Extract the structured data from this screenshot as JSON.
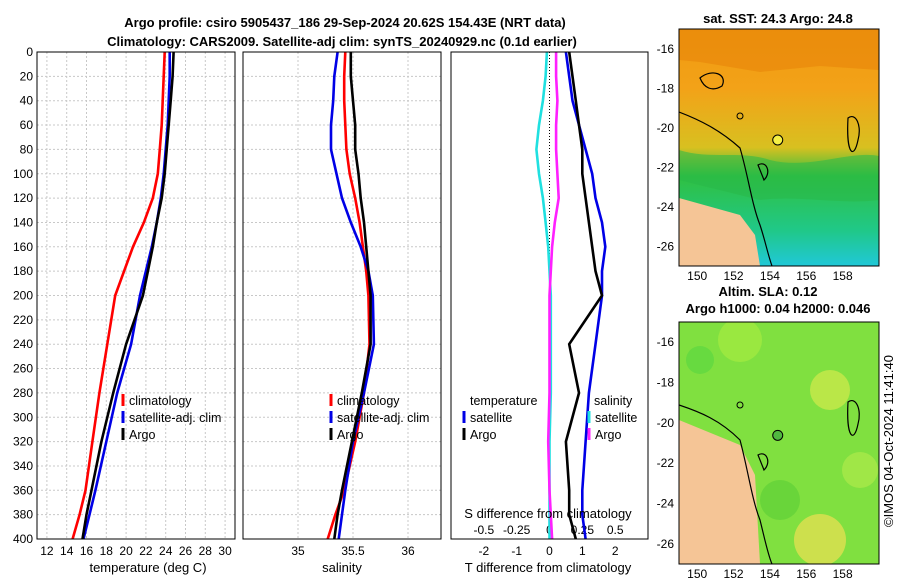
{
  "header": {
    "title_line1": "Argo profile: csiro 5905437_186 29-Sep-2024 20.62S 154.43E (NRT data)",
    "title_line2": "Climatology: CARS2009. Satellite-adj clim: synTS_20240929.nc (0.1d earlier)"
  },
  "watermark": "©IMOS 04-Oct-2024 11:41:40",
  "colors": {
    "red": "#ff0000",
    "blue": "#0000e6",
    "black": "#000000",
    "cyan": "#20e0e0",
    "magenta": "#ff20ff"
  },
  "chart_data": [
    {
      "id": "temperature",
      "type": "line",
      "xlabel": "temperature (deg C)",
      "ylabel": "depth",
      "xlim": [
        11,
        31
      ],
      "ylim": [
        0,
        400
      ],
      "xticks": [
        "12",
        "14",
        "16",
        "18",
        "20",
        "22",
        "24",
        "26",
        "28",
        "30"
      ],
      "yticks": [
        "0",
        "20",
        "40",
        "60",
        "80",
        "100",
        "120",
        "140",
        "160",
        "180",
        "200",
        "220",
        "240",
        "260",
        "280",
        "300",
        "320",
        "340",
        "360",
        "380",
        "400"
      ],
      "grid": true,
      "legend": [
        "climatology",
        "satellite-adj. clim",
        "Argo"
      ],
      "legend_colors": [
        "#ff0000",
        "#0000e6",
        "#000000"
      ],
      "series": [
        {
          "name": "climatology",
          "color": "#ff0000",
          "x": [
            23.9,
            23.8,
            23.7,
            23.6,
            23.4,
            23.2,
            22.7,
            21.8,
            20.7,
            19.8,
            18.9,
            18.1,
            17.3,
            16.6,
            15.9,
            15.3,
            14.6
          ],
          "depth": [
            0,
            20,
            40,
            60,
            80,
            100,
            120,
            140,
            160,
            180,
            200,
            240,
            280,
            320,
            360,
            380,
            400
          ]
        },
        {
          "name": "satellite-adj. clim",
          "color": "#0000e6",
          "x": [
            24.4,
            24.4,
            24.3,
            24.2,
            24.0,
            23.8,
            23.5,
            23.1,
            22.6,
            22.0,
            21.4,
            20.5,
            19.1,
            18.0,
            16.9,
            16.3,
            15.7
          ],
          "depth": [
            0,
            20,
            40,
            60,
            80,
            100,
            120,
            140,
            160,
            180,
            200,
            240,
            280,
            320,
            360,
            380,
            400
          ]
        },
        {
          "name": "Argo",
          "color": "#000000",
          "x": [
            24.8,
            24.7,
            24.5,
            24.3,
            24.1,
            23.9,
            23.6,
            23.1,
            22.7,
            22.2,
            21.7,
            20.0,
            18.7,
            17.5,
            16.5,
            16.0,
            15.6
          ],
          "depth": [
            0,
            20,
            40,
            60,
            80,
            100,
            120,
            140,
            160,
            180,
            200,
            240,
            280,
            320,
            360,
            380,
            400
          ]
        }
      ]
    },
    {
      "id": "salinity",
      "type": "line",
      "xlabel": "salinity",
      "xlim": [
        34.5,
        36.3
      ],
      "ylim": [
        0,
        400
      ],
      "xticks": [
        "35",
        "35.5",
        "36"
      ],
      "xtick_values": [
        35,
        35.5,
        36
      ],
      "grid": true,
      "legend": [
        "climatology",
        "satellite-adj. clim",
        "Argo"
      ],
      "legend_colors": [
        "#ff0000",
        "#0000e6",
        "#000000"
      ],
      "series": [
        {
          "name": "climatology",
          "color": "#ff0000",
          "x": [
            35.43,
            35.42,
            35.42,
            35.43,
            35.44,
            35.47,
            35.52,
            35.56,
            35.59,
            35.62,
            35.64,
            35.65,
            35.6,
            35.52,
            35.42,
            35.34,
            35.27
          ],
          "depth": [
            0,
            20,
            40,
            60,
            80,
            100,
            120,
            140,
            160,
            180,
            200,
            240,
            280,
            320,
            360,
            380,
            400
          ]
        },
        {
          "name": "satellite-adj. clim",
          "color": "#0000e6",
          "x": [
            35.36,
            35.33,
            35.32,
            35.3,
            35.3,
            35.35,
            35.4,
            35.48,
            35.57,
            35.64,
            35.68,
            35.69,
            35.6,
            35.5,
            35.43,
            35.4,
            35.37
          ],
          "depth": [
            0,
            20,
            40,
            60,
            80,
            100,
            120,
            140,
            160,
            180,
            200,
            240,
            280,
            320,
            360,
            380,
            400
          ]
        },
        {
          "name": "Argo",
          "color": "#000000",
          "x": [
            35.48,
            35.48,
            35.5,
            35.52,
            35.52,
            35.55,
            35.57,
            35.6,
            35.62,
            35.64,
            35.66,
            35.66,
            35.58,
            35.49,
            35.4,
            35.36,
            35.33
          ],
          "depth": [
            0,
            20,
            40,
            60,
            80,
            100,
            120,
            140,
            160,
            180,
            200,
            240,
            280,
            320,
            360,
            380,
            400
          ]
        }
      ]
    },
    {
      "id": "difference",
      "type": "line",
      "xlabel": "T difference from climatology",
      "xlabel_top": "S difference from climatology",
      "xlim": [
        -3,
        3
      ],
      "ylim": [
        0,
        400
      ],
      "xticks": [
        "-2",
        "-1",
        "0",
        "1",
        "2"
      ],
      "xtick_values": [
        -2,
        -1,
        0,
        1,
        2
      ],
      "s_xticks": [
        "-0.5",
        "-0.25",
        "0",
        "0.25",
        "0.5"
      ],
      "s_xtick_values": [
        -0.5,
        -0.25,
        0,
        0.25,
        0.5
      ],
      "s_xlim": [
        -0.75,
        0.75
      ],
      "zero_line": true,
      "legend_left_title": "temperature",
      "legend_left": [
        "satellite",
        "Argo"
      ],
      "legend_left_colors": [
        "#0000e6",
        "#000000"
      ],
      "legend_right_title": "salinity",
      "legend_right": [
        "satellite",
        "Argo"
      ],
      "legend_right_colors": [
        "#20e0e0",
        "#ff20ff"
      ],
      "series": [
        {
          "name": "T satellite",
          "color": "#0000e6",
          "x": [
            0.5,
            0.6,
            0.7,
            0.9,
            1.1,
            1.3,
            1.4,
            1.6,
            1.7,
            1.6,
            1.6,
            1.4,
            1.2,
            1.1,
            1.0,
            1.0,
            1.1
          ],
          "depth": [
            0,
            20,
            40,
            60,
            80,
            100,
            120,
            140,
            160,
            180,
            200,
            240,
            280,
            320,
            360,
            380,
            400
          ]
        },
        {
          "name": "T Argo",
          "color": "#000000",
          "x": [
            0.6,
            0.7,
            0.8,
            0.9,
            1.0,
            1.0,
            1.1,
            1.2,
            1.3,
            1.4,
            1.6,
            0.6,
            0.9,
            0.5,
            0.6,
            0.6,
            0.8
          ],
          "depth": [
            0,
            20,
            40,
            60,
            80,
            100,
            120,
            140,
            160,
            180,
            200,
            240,
            280,
            320,
            360,
            380,
            400
          ]
        },
        {
          "name": "S satellite",
          "color": "#20e0e0",
          "x": [
            -0.02,
            -0.03,
            -0.05,
            -0.08,
            -0.1,
            -0.08,
            -0.05,
            -0.03,
            -0.01,
            0.0,
            0.01,
            0.01,
            0.01,
            0.0,
            0.0,
            0.0,
            0.0
          ],
          "depth": [
            0,
            20,
            40,
            60,
            80,
            100,
            120,
            140,
            160,
            180,
            200,
            240,
            280,
            320,
            360,
            380,
            400
          ]
        },
        {
          "name": "S Argo",
          "color": "#ff20ff",
          "x": [
            0.05,
            0.05,
            0.06,
            0.05,
            0.05,
            0.06,
            0.07,
            0.04,
            0.02,
            0.01,
            0.0,
            0.0,
            0.0,
            -0.01,
            0.0,
            0.01,
            0.02
          ],
          "depth": [
            0,
            20,
            40,
            60,
            80,
            100,
            120,
            140,
            160,
            180,
            200,
            240,
            280,
            320,
            360,
            380,
            400
          ]
        }
      ]
    },
    {
      "id": "sst_map",
      "type": "heatmap",
      "title": "sat. SST: 24.3 Argo: 24.8",
      "xticks": [
        "150",
        "152",
        "154",
        "156",
        "158"
      ],
      "xtick_values": [
        150,
        152,
        154,
        156,
        158
      ],
      "yticks": [
        "-16",
        "-18",
        "-20",
        "-22",
        "-24",
        "-26"
      ],
      "ytick_values": [
        -16,
        -18,
        -20,
        -22,
        -24,
        -26
      ],
      "xlim": [
        149,
        160
      ],
      "ylim": [
        -27,
        -15
      ],
      "argo_lon": 154.43,
      "argo_lat": -20.62
    },
    {
      "id": "sla_map",
      "type": "heatmap",
      "title_line1": "Altim. SLA: 0.12",
      "title_line2": "Argo h1000: 0.04 h2000: 0.046",
      "xticks": [
        "150",
        "152",
        "154",
        "156",
        "158"
      ],
      "xtick_values": [
        150,
        152,
        154,
        156,
        158
      ],
      "yticks": [
        "-16",
        "-18",
        "-20",
        "-22",
        "-24",
        "-26"
      ],
      "ytick_values": [
        -16,
        -18,
        -20,
        -22,
        -24,
        -26
      ],
      "xlim": [
        149,
        160
      ],
      "ylim": [
        -27,
        -15
      ],
      "argo_lon": 154.43,
      "argo_lat": -20.62
    }
  ]
}
